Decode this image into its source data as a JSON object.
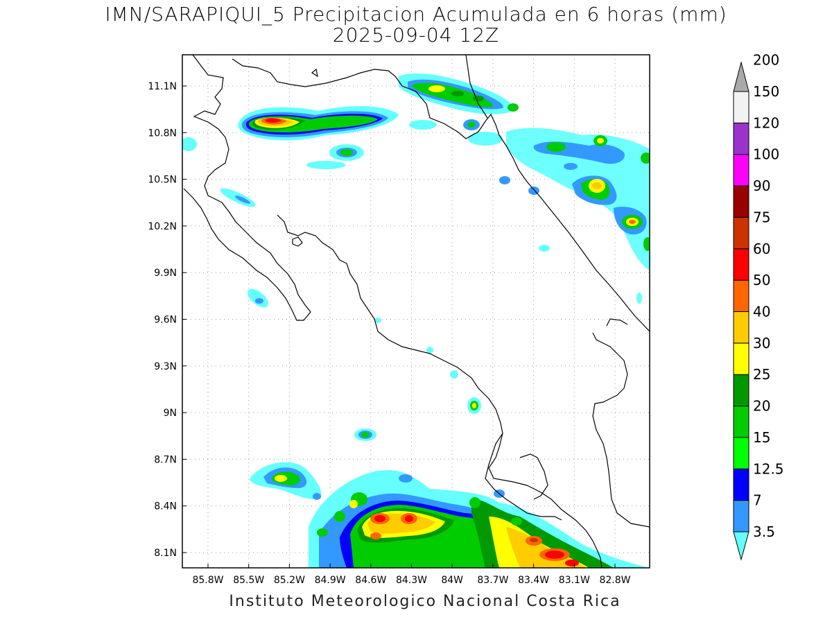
{
  "title": {
    "line1": "IMN/SARAPIQUI_5 Precipitacion Acumulada en 6 horas (mm)",
    "line2": "2025-09-04 12Z"
  },
  "footer": "Instituto Meteorologico Nacional Costa Rica",
  "map": {
    "lon_range": [
      -86.1,
      -82.5
    ],
    "lat_range": [
      8.0,
      11.3
    ],
    "x_ticks": [
      "85.8W",
      "85.5W",
      "85.2W",
      "84.9W",
      "84.6W",
      "84.3W",
      "84W",
      "83.7W",
      "83.4W",
      "83.1W",
      "82.8W"
    ],
    "y_ticks": [
      "11.1N",
      "10.8N",
      "10.5N",
      "10.2N",
      "9.9N",
      "9.6N",
      "9.3N",
      "9N",
      "8.7N",
      "8.4N",
      "8.1N"
    ],
    "grid": "dotted"
  },
  "colorbar": {
    "labels": [
      "3.5",
      "7",
      "12.5",
      "15",
      "20",
      "25",
      "30",
      "40",
      "50",
      "60",
      "75",
      "90",
      "100",
      "120",
      "150",
      "200"
    ],
    "colors": [
      "#66ffff",
      "#3399ff",
      "#0000ff",
      "#00ff00",
      "#00cc00",
      "#009900",
      "#ffff00",
      "#ffcc00",
      "#ff6600",
      "#ff0000",
      "#cc3300",
      "#990000",
      "#ff00ff",
      "#9933cc",
      "#f2f2f2",
      "#aaaaaa"
    ],
    "units": "mm"
  }
}
